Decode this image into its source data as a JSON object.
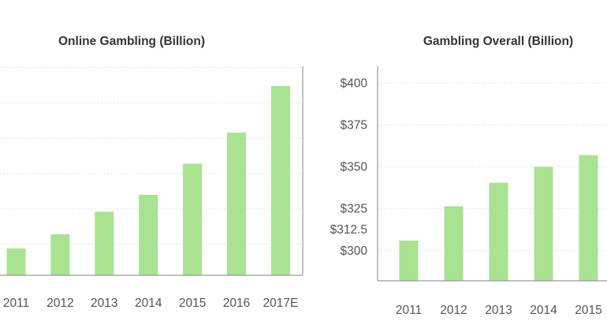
{
  "chart_data": [
    {
      "type": "bar",
      "title": "Online Gambling (Billion)",
      "categories": [
        "2011",
        "2012",
        "2013",
        "2014",
        "2015",
        "2016",
        "2017E"
      ],
      "values": [
        30.5,
        35.5,
        43.5,
        49.5,
        60.5,
        71.5,
        88.0
      ],
      "ylim": [
        21,
        95
      ],
      "y_tick_values": [
        32,
        44.5,
        57,
        69.5,
        82,
        94.5
      ],
      "y_tick_labels_visible": false,
      "grid": true,
      "bar_color": "#a8e391"
    },
    {
      "type": "bar",
      "title": "Gambling Overall (Billion)",
      "categories": [
        "2011",
        "2012",
        "2013",
        "2014",
        "2015"
      ],
      "values": [
        306,
        326.5,
        340.5,
        350,
        357
      ],
      "ylim": [
        282,
        410
      ],
      "y_ticks": [
        {
          "value": 400,
          "label": "$400"
        },
        {
          "value": 375,
          "label": "$375"
        },
        {
          "value": 350,
          "label": "$350"
        },
        {
          "value": 325,
          "label": "$325"
        },
        {
          "value": 312.5,
          "label": "$312.5"
        },
        {
          "value": 300,
          "label": "$300"
        }
      ],
      "grid": true,
      "bar_color": "#a8e391"
    }
  ]
}
